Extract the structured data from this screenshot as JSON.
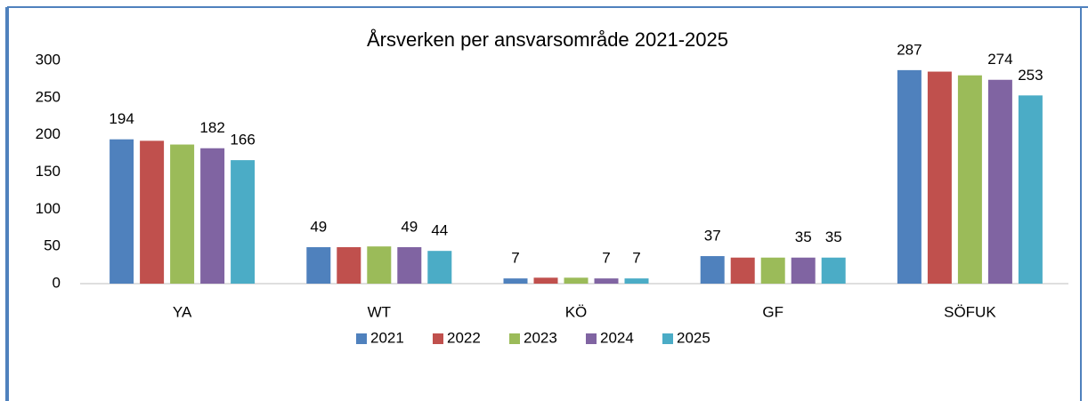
{
  "chart_data": {
    "type": "bar",
    "title": "Årsverken per ansvarsområde 2021-2025",
    "categories": [
      "YA",
      "WT",
      "KÖ",
      "GF",
      "SÖFUK"
    ],
    "series": [
      {
        "name": "2021",
        "color": "#4f81bd",
        "values": [
          194,
          49,
          7,
          37,
          287
        ],
        "show_labels": true
      },
      {
        "name": "2022",
        "color": "#c0504d",
        "values": [
          192,
          49,
          8,
          35,
          285
        ],
        "show_labels": false
      },
      {
        "name": "2023",
        "color": "#9bbb59",
        "values": [
          187,
          50,
          8,
          35,
          280
        ],
        "show_labels": false
      },
      {
        "name": "2024",
        "color": "#8064a2",
        "values": [
          182,
          49,
          7,
          35,
          274
        ],
        "show_labels": true
      },
      {
        "name": "2025",
        "color": "#4bacc6",
        "values": [
          166,
          44,
          7,
          35,
          253
        ],
        "show_labels": true
      }
    ],
    "ylim": [
      0,
      300
    ],
    "yticks": [
      0,
      50,
      100,
      150,
      200,
      250,
      300
    ],
    "grid": false,
    "legend": "bottom"
  }
}
